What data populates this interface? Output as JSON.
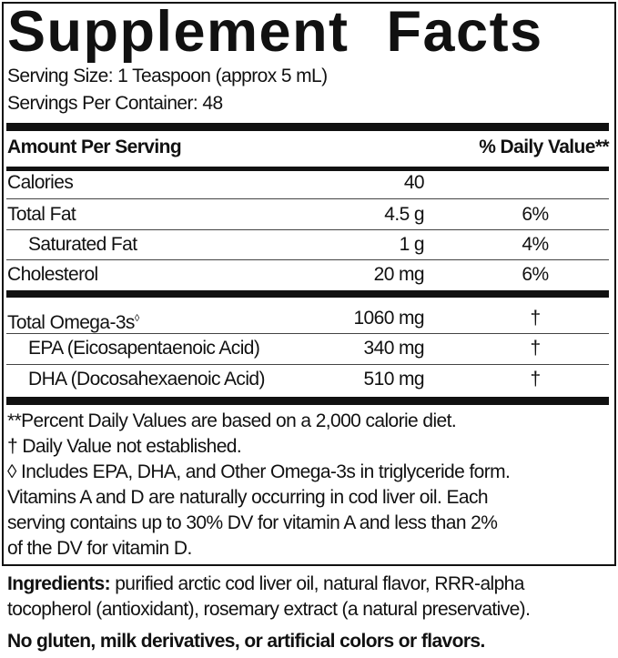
{
  "title": "Supplement Facts",
  "serving_size": "Serving Size: 1 Teaspoon (approx 5 mL)",
  "servings_per_container": "Servings Per Container: 48",
  "header": {
    "amount": "Amount Per Serving",
    "dv": "% Daily Value**"
  },
  "rows": [
    {
      "name": "Calories",
      "amount": "40",
      "dv": ""
    },
    {
      "name": "Total Fat",
      "amount": "4.5 g",
      "dv": "6%"
    },
    {
      "name": "Saturated Fat",
      "amount": "1 g",
      "dv": "4%"
    },
    {
      "name": "Cholesterol",
      "amount": "20 mg",
      "dv": "6%"
    },
    {
      "name": "Total Omega-3s",
      "sup": "◊",
      "amount": "1060 mg",
      "dv": "†"
    },
    {
      "name": "EPA (Eicosapentaenoic Acid)",
      "amount": "340 mg",
      "dv": "†"
    },
    {
      "name": "DHA (Docosahexaenoic Acid)",
      "amount": "510 mg",
      "dv": "†"
    }
  ],
  "footnotes": [
    "**Percent Daily Values are based on a 2,000 calorie diet.",
    "† Daily Value not established.",
    "◊ Includes EPA, DHA, and Other Omega-3s in triglyceride form.",
    "Vitamins A and D are naturally occurring in cod liver oil. Each",
    "serving contains up to 30% DV for vitamin A and less than 2%",
    "of the DV for vitamin D."
  ],
  "ingredients": {
    "label": "Ingredients:",
    "line1": " purified arctic cod liver oil, natural flavor, RRR-alpha",
    "line2": "tocopherol (antioxidant), rosemary extract (a natural preservative)."
  },
  "allergen": "No gluten, milk derivatives, or artificial colors or flavors."
}
